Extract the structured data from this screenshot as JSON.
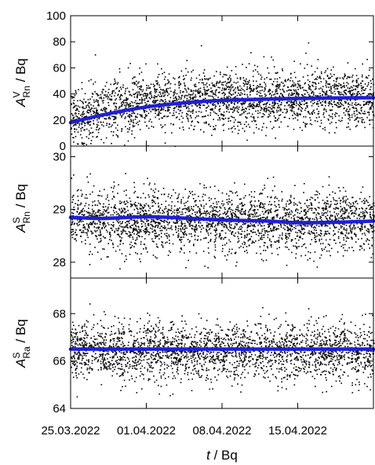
{
  "chart_data": {
    "type": "scatter",
    "x_axis": {
      "label_var": "t",
      "label_unit": " / Bq",
      "start": "2022-03-25",
      "end": "2022-04-22",
      "ticks": [
        "25.03.2022",
        "01.04.2022",
        "08.04.2022",
        "15.04.2022"
      ],
      "tick_dates": [
        "2022-03-25",
        "2022-04-01",
        "2022-04-08",
        "2022-04-15"
      ]
    },
    "panels": [
      {
        "ylabel_main": "A",
        "ylabel_sup": "V",
        "ylabel_sub": "Rn",
        "ylabel_unit": " / Bq",
        "ylim": [
          0,
          100
        ],
        "yticks": [
          "0",
          "20",
          "40",
          "60",
          "80",
          "100"
        ],
        "fit_line": {
          "color": "#1f1fd6",
          "x": [
            "2022-03-25",
            "2022-03-28",
            "2022-04-01",
            "2022-04-05",
            "2022-04-08",
            "2022-04-12",
            "2022-04-15",
            "2022-04-19",
            "2022-04-22"
          ],
          "y": [
            18,
            24,
            30,
            33.5,
            35,
            36,
            36.5,
            37,
            37
          ]
        },
        "scatter": {
          "color": "#000000",
          "center_start": 22,
          "center_end": 38,
          "spread": 11,
          "min": 0,
          "max": 100
        }
      },
      {
        "ylabel_main": "A",
        "ylabel_sup": "S",
        "ylabel_sub": "Rn",
        "ylabel_unit": " / Bq",
        "ylim": [
          27.7,
          30.2
        ],
        "yticks": [
          "28",
          "29",
          "30"
        ],
        "fit_line": {
          "color": "#1f1fd6",
          "x": [
            "2022-03-25",
            "2022-03-28",
            "2022-04-01",
            "2022-04-05",
            "2022-04-08",
            "2022-04-12",
            "2022-04-15",
            "2022-04-19",
            "2022-04-22"
          ],
          "y": [
            28.85,
            28.83,
            28.86,
            28.83,
            28.8,
            28.78,
            28.75,
            28.76,
            28.78
          ]
        },
        "scatter": {
          "color": "#000000",
          "center_start": 28.85,
          "center_end": 28.78,
          "spread": 0.28,
          "min": 27.75,
          "max": 30.0
        }
      },
      {
        "ylabel_main": "A",
        "ylabel_sup": "S",
        "ylabel_sub": "Ra",
        "ylabel_unit": " / Bq",
        "ylim": [
          64,
          69.5
        ],
        "yticks": [
          "64",
          "66",
          "68"
        ],
        "fit_line": {
          "color": "#1f1fd6",
          "x": [
            "2022-03-25",
            "2022-04-22"
          ],
          "y": [
            66.5,
            66.5
          ]
        },
        "scatter": {
          "color": "#000000",
          "center_start": 66.45,
          "center_end": 66.45,
          "spread": 0.6,
          "min": 64.4,
          "max": 68.8
        }
      }
    ],
    "grid": false
  }
}
